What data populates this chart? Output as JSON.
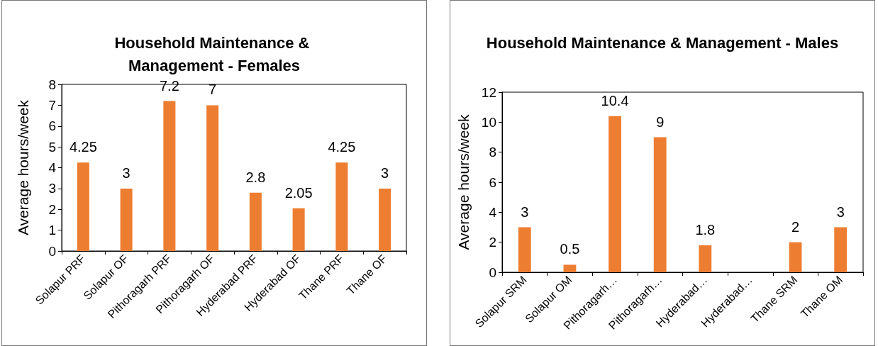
{
  "chart_data": [
    {
      "type": "bar",
      "title": "Household Maintenance & Management - Females",
      "ylabel": "Average hours/week",
      "categories": [
        "Solapur PRF",
        "Solapur OF",
        "Pithoragarh PRF",
        "Pithoragarh OF",
        "Hyderabad PRF",
        "Hyderabad OF",
        "Thane PRF",
        "Thane OF"
      ],
      "values": [
        4.25,
        3,
        7.2,
        7,
        2.8,
        2.05,
        4.25,
        3
      ],
      "color": "#ed7d31",
      "ylim": [
        0,
        8
      ],
      "yticks": [
        0,
        1,
        2,
        3,
        4,
        5,
        6,
        7,
        8
      ],
      "data_labels": true
    },
    {
      "type": "bar",
      "title": "Household Maintenance & Management - Males",
      "ylabel": "Average hours/week",
      "categories": [
        "Solapur SRM",
        "Solapur OM",
        "Pithoragarh…",
        "Pithoragarh…",
        "Hyderabad…",
        "Hyderabad…",
        "Thane SRM",
        "Thane OM"
      ],
      "values": [
        3,
        0.5,
        10.4,
        9,
        1.8,
        null,
        2,
        3
      ],
      "color": "#ed7d31",
      "ylim": [
        0,
        12
      ],
      "yticks": [
        0,
        2,
        4,
        6,
        8,
        10,
        12
      ],
      "data_labels": true
    }
  ]
}
